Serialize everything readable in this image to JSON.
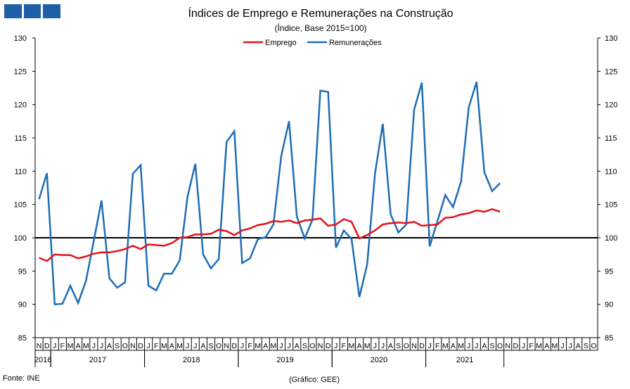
{
  "chart_data": {
    "type": "line",
    "title": "Índices de Emprego e Remunerações na Construção",
    "subtitle": "(Índice, Base 2015=100)",
    "source": "Fonte: INE",
    "credit": "(Gráfico: GEE)",
    "legend_position": "top-center",
    "ylim": [
      85,
      130
    ],
    "yticks": [
      85,
      90,
      95,
      100,
      105,
      110,
      115,
      120,
      125,
      130
    ],
    "reference_line": 100,
    "month_labels": [
      "N",
      "D",
      "J",
      "F",
      "M",
      "A",
      "M",
      "J",
      "J",
      "A",
      "S",
      "O",
      "N",
      "D",
      "J",
      "F",
      "M",
      "A",
      "M",
      "J",
      "J",
      "A",
      "S",
      "O",
      "N",
      "D",
      "J",
      "F",
      "M",
      "A",
      "M",
      "J",
      "J",
      "A",
      "S",
      "O",
      "N",
      "D",
      "J",
      "F",
      "M",
      "A",
      "M",
      "J",
      "J",
      "A",
      "S",
      "O",
      "N",
      "D",
      "J",
      "F",
      "M",
      "A",
      "M",
      "J",
      "J",
      "A",
      "S",
      "O",
      "N",
      "D",
      "J",
      "F",
      "M",
      "A",
      "M",
      "J",
      "J",
      "A",
      "S",
      "O"
    ],
    "years": [
      {
        "label": "2016",
        "start": 0,
        "count": 2
      },
      {
        "label": "2017",
        "start": 2,
        "count": 12
      },
      {
        "label": "2018",
        "start": 14,
        "count": 12
      },
      {
        "label": "2019",
        "start": 26,
        "count": 12
      },
      {
        "label": "2020",
        "start": 38,
        "count": 12
      },
      {
        "label": "2021",
        "start": 50,
        "count": 10
      }
    ],
    "series": [
      {
        "name": "Emprego",
        "color": "#e3121a",
        "values": [
          97.0,
          96.5,
          97.5,
          97.4,
          97.4,
          96.9,
          97.2,
          97.6,
          97.8,
          97.8,
          98.0,
          98.3,
          98.8,
          98.3,
          99.0,
          98.9,
          98.8,
          99.2,
          100.0,
          100.1,
          100.5,
          100.5,
          100.6,
          101.2,
          101.0,
          100.4,
          101.1,
          101.4,
          101.9,
          102.1,
          102.5,
          102.4,
          102.6,
          102.2,
          102.6,
          102.7,
          102.9,
          101.8,
          102.0,
          102.8,
          102.4,
          99.9,
          100.4,
          101.1,
          102.0,
          102.2,
          102.3,
          102.2,
          102.4,
          101.8,
          101.9,
          102.0,
          103.0,
          103.1,
          103.5,
          103.7,
          104.1,
          103.9,
          104.3,
          103.9
        ]
      },
      {
        "name": "Remunerações",
        "color": "#1f6db4",
        "values": [
          105.8,
          109.7,
          90.0,
          90.1,
          92.8,
          90.2,
          93.5,
          99.5,
          105.6,
          93.9,
          92.5,
          93.3,
          109.6,
          110.9,
          92.8,
          92.1,
          94.6,
          94.6,
          96.6,
          106.2,
          111.1,
          97.5,
          95.4,
          96.8,
          114.4,
          116.0,
          96.2,
          96.9,
          99.8,
          100.1,
          102.0,
          112.3,
          117.5,
          103.2,
          99.9,
          102.7,
          122.1,
          121.9,
          98.5,
          101.1,
          99.8,
          91.1,
          96.0,
          109.6,
          117.1,
          103.5,
          100.8,
          102.0,
          119.2,
          123.3,
          98.7,
          102.5,
          106.4,
          104.6,
          108.4,
          119.6,
          123.4,
          109.8,
          107.0,
          108.2
        ]
      }
    ]
  }
}
